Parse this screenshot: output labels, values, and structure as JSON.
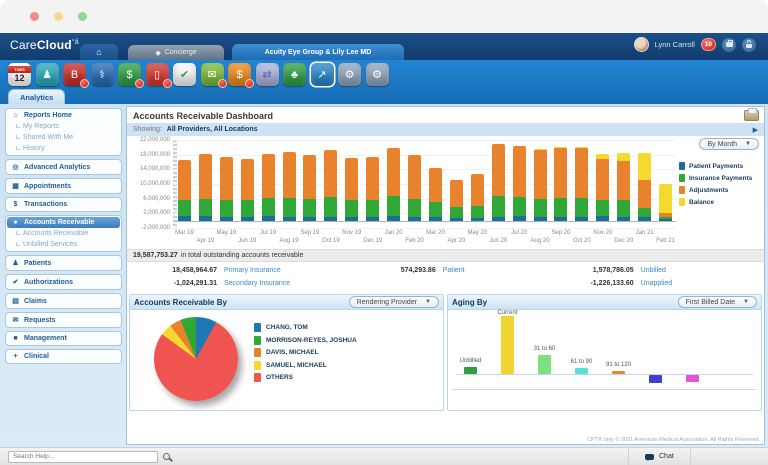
{
  "header": {
    "brand_care": "Care",
    "brand_cloud": "Cloud",
    "concierge_tab": "Concierge",
    "practice_tab": "Acuity Eye Group & Lily Lee MD",
    "user_name": "Lynn Carroll",
    "notification_count": "10"
  },
  "app_icons": [
    {
      "name": "calendar-icon",
      "type": "calendar",
      "day": "TUES",
      "date": "12",
      "badge": false
    },
    {
      "name": "patients-icon",
      "glyph": "♟",
      "color": "#2aa7b8",
      "badge": false
    },
    {
      "name": "billing-icon",
      "glyph": "B",
      "color": "#c62f2a",
      "badge": true
    },
    {
      "name": "clinical-icon",
      "glyph": "⚕",
      "color": "#2a6bb0",
      "badge": false
    },
    {
      "name": "payments-icon",
      "glyph": "$",
      "color": "#2f9e44",
      "badge": true
    },
    {
      "name": "mobile-device-icon",
      "glyph": "▯",
      "color": "#d03a30",
      "badge": true
    },
    {
      "name": "tasks-check-icon",
      "glyph": "✔",
      "color": "#f4f4f4",
      "glyph_color": "#2f9e44",
      "badge": false
    },
    {
      "name": "messages-icon",
      "glyph": "✉",
      "color": "#7ab83c",
      "badge": true
    },
    {
      "name": "collections-moneybag-icon",
      "glyph": "$",
      "color": "#e8891e",
      "badge": true
    },
    {
      "name": "documents-transfer-icon",
      "glyph": "⇄",
      "color": "#abb0d8",
      "glyph_color": "#5a5fa6",
      "badge": false
    },
    {
      "name": "growth-tree-icon",
      "glyph": "♣",
      "color": "#2f9e44",
      "badge": false
    },
    {
      "name": "analytics-icon",
      "glyph": "↗",
      "color": "#2b86c8",
      "badge": false,
      "selected": true
    },
    {
      "name": "gear-icon",
      "glyph": "⚙",
      "color": "#8fa3b8",
      "badge": false
    },
    {
      "name": "admin-gear-icon",
      "glyph": "⚙",
      "color": "#8fa3b8",
      "badge": false
    }
  ],
  "analytics_tab": "Analytics",
  "sidebar": {
    "groups": [
      {
        "items": [
          {
            "type": "main",
            "name": "reports-home",
            "glyph": "⌂",
            "label": "Reports Home"
          },
          {
            "type": "sub",
            "name": "my-reports",
            "label": "My Reports"
          },
          {
            "type": "sub",
            "name": "shared-with-me",
            "label": "Shared With Me"
          },
          {
            "type": "sub",
            "name": "history",
            "label": "History"
          }
        ]
      },
      {
        "items": [
          {
            "type": "main",
            "name": "advanced-analytics",
            "glyph": "◎",
            "label": "Advanced Analytics"
          }
        ]
      },
      {
        "items": [
          {
            "type": "main",
            "name": "appointments",
            "glyph": "▦",
            "label": "Appointments"
          }
        ]
      },
      {
        "items": [
          {
            "type": "main",
            "name": "transactions",
            "glyph": "$",
            "label": "Transactions"
          }
        ]
      },
      {
        "items": [
          {
            "type": "main",
            "name": "accounts-receivable",
            "glyph": "●",
            "label": "Accounts Receivable",
            "selected": true
          },
          {
            "type": "sub",
            "name": "accounts-receivable-report",
            "label": "Accounts Receivable"
          },
          {
            "type": "sub",
            "name": "unbilled-services",
            "label": "Unbilled Services"
          }
        ]
      },
      {
        "items": [
          {
            "type": "main",
            "name": "patients",
            "glyph": "♟",
            "label": "Patients"
          }
        ]
      },
      {
        "items": [
          {
            "type": "main",
            "name": "authorizations",
            "glyph": "✔",
            "label": "Authorizations"
          }
        ]
      },
      {
        "items": [
          {
            "type": "main",
            "name": "claims",
            "glyph": "▤",
            "label": "Claims"
          }
        ]
      },
      {
        "items": [
          {
            "type": "main",
            "name": "requests",
            "glyph": "✉",
            "label": "Requests"
          }
        ]
      },
      {
        "items": [
          {
            "type": "main",
            "name": "management",
            "glyph": "■",
            "label": "Management"
          }
        ]
      },
      {
        "items": [
          {
            "type": "main",
            "name": "clinical",
            "glyph": "+",
            "label": "Clinical"
          }
        ]
      }
    ]
  },
  "main": {
    "title": "Accounts Receivable Dashboard",
    "showing_label": "Showing:",
    "showing_value": "All Providers, All Locations",
    "interval_dropdown": "By Month",
    "panel_left_title": "Accounts Receivable By",
    "panel_left_dropdown": "Rendering Provider",
    "panel_right_title": "Aging By",
    "panel_right_dropdown": "First Billed Date",
    "footer_note": "CPT® only © 2021 American Medical Association. All Rights Reserved."
  },
  "ar_summary": {
    "total_value": "19,587,753.27",
    "total_suffix": "in total outstanding accounts receivable",
    "items": [
      {
        "value": "18,458,964.67",
        "label": "Primary Insurance"
      },
      {
        "value": "574,293.86",
        "label": "Patient"
      },
      {
        "value": "1,578,786.05",
        "label": "Unbilled"
      },
      {
        "value": "-1,024,291.31",
        "label": "Secondary Insurance"
      },
      {
        "value": "-1,226,133.60",
        "label": "Unapplied"
      }
    ]
  },
  "chart_data": [
    {
      "type": "bar",
      "stacked": true,
      "title": "Accounts receivable by month",
      "unit": "millions USD",
      "x": [
        "Mar 19",
        "Apr 19",
        "May 19",
        "Jun 19",
        "Jul 19",
        "Aug 19",
        "Sep 19",
        "Oct 19",
        "Nov 19",
        "Dec 19",
        "Jan 20",
        "Feb 20",
        "Mar 20",
        "Apr 20",
        "May 20",
        "Jun 20",
        "Jul 20",
        "Aug 20",
        "Sep 20",
        "Oct 20",
        "Nov 20",
        "Dec 20",
        "Jan 21",
        "Feb 21"
      ],
      "series": [
        {
          "name": "Patient Payments",
          "color": "#1b6d9c",
          "values": [
            1.2,
            1.2,
            1.1,
            1.1,
            1.2,
            1.1,
            1.0,
            1.1,
            1.1,
            1.0,
            1.3,
            1.1,
            1.0,
            0.8,
            0.7,
            1.1,
            1.2,
            1.0,
            1.1,
            1.1,
            1.2,
            1.1,
            1.0,
            0.4
          ]
        },
        {
          "name": "Insurance Payments",
          "color": "#2fa838",
          "values": [
            4.3,
            4.8,
            4.6,
            4.4,
            4.9,
            5.1,
            4.9,
            5.3,
            4.4,
            4.6,
            5.3,
            4.9,
            4.0,
            2.8,
            3.3,
            5.5,
            5.3,
            5.0,
            5.2,
            5.2,
            4.3,
            4.4,
            2.5,
            0.5
          ]
        },
        {
          "name": "Adjustments",
          "color": "#e8822c",
          "values": [
            11.0,
            12.2,
            11.8,
            11.3,
            12.2,
            12.5,
            12.1,
            12.8,
            11.5,
            11.7,
            13.2,
            11.8,
            9.5,
            7.4,
            8.8,
            14.4,
            13.8,
            13.3,
            13.5,
            13.4,
            11.2,
            10.8,
            7.5,
            1.1
          ]
        },
        {
          "name": "Balance",
          "color": "#f5d92e",
          "values": [
            0,
            0,
            0,
            0,
            0,
            0,
            0,
            0,
            0,
            0,
            0,
            0,
            0,
            0,
            0,
            0,
            0,
            0.2,
            0.2,
            0.5,
            1.5,
            2.2,
            7.5,
            8.0
          ]
        }
      ],
      "y_ticks": [
        "22,000,000",
        "18,000,000",
        "14,000,000",
        "10,000,000",
        "6,000,000",
        "2,000,000",
        "-2,000,000"
      ],
      "ylim": [
        -2,
        22
      ],
      "legend_position": "right"
    },
    {
      "type": "pie",
      "title": "Accounts Receivable By Rendering Provider",
      "slices": [
        {
          "label": "CHANG, TOM",
          "color": "#1f77b4",
          "pct": 8
        },
        {
          "label": "MORRISON-REYES, JOSHUA",
          "color": "#2fa838",
          "pct": 6
        },
        {
          "label": "DAVIS, MICHAEL",
          "color": "#e8822c",
          "pct": 4.5
        },
        {
          "label": "SAMUEL, MICHAEL",
          "color": "#f5d92e",
          "pct": 4.5
        },
        {
          "label": "OTHERS",
          "color": "#f05450",
          "pct": 77
        }
      ],
      "clockwise_order": [
        0,
        4,
        3,
        2,
        1
      ],
      "legend_position": "right"
    },
    {
      "type": "bar",
      "title": "Aging By First Billed Date",
      "unit": "millions USD",
      "categories": [
        "Unbilled",
        "Current",
        "31 to 60",
        "61 to 90",
        "91 to 120",
        "",
        ""
      ],
      "values": [
        1.6,
        13.5,
        4.4,
        1.5,
        0.6,
        -1.8,
        -1.6
      ],
      "colors": [
        "#2e9e40",
        "#f0d432",
        "#7ee07e",
        "#55e0d8",
        "#e8882e",
        "#4040cc",
        "#e055d5"
      ]
    }
  ],
  "bottom_bar": {
    "search_placeholder": "Search Help...",
    "chat_label": "Chat"
  }
}
